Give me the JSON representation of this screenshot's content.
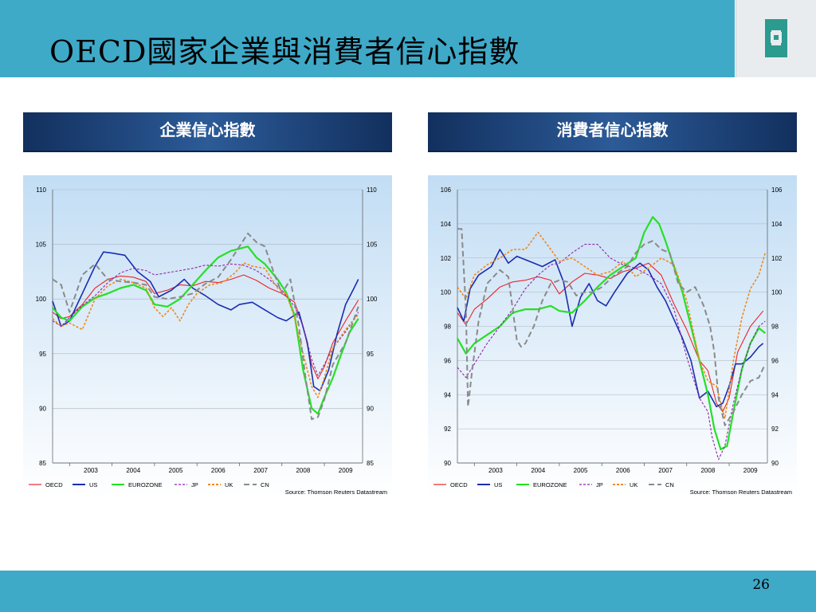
{
  "slide": {
    "title": "OECD國家企業與消費者信心指數",
    "page_number": "26"
  },
  "colors": {
    "band": "#3fa9c8",
    "chart_bg_top": "#c2ddf4",
    "chart_bg_bottom": "#ffffff",
    "OECD": "#e8262b",
    "US": "#1a2db0",
    "EUROZONE": "#25e025",
    "JP": "#9124a8",
    "UK": "#f08a1d",
    "CN": "#8a8a8a"
  },
  "logo": {
    "icon": "fubon-logo-icon"
  },
  "chart_data": [
    {
      "type": "line",
      "header": "企業信心指數",
      "ylim": [
        85,
        110
      ],
      "yticks": [
        85,
        90,
        95,
        100,
        105,
        110
      ],
      "xlim": [
        2002.6,
        2009.9
      ],
      "xticks": [
        "2003",
        "2004",
        "2005",
        "2006",
        "2007",
        "2008",
        "2009"
      ],
      "source": "Source: Thomson Reuters Datastream",
      "grid": true,
      "legend": "bottom",
      "series": [
        {
          "name": "OECD",
          "x": [
            2002.6,
            2002.8,
            2003.0,
            2003.3,
            2003.6,
            2003.9,
            2004.2,
            2004.5,
            2004.8,
            2005.0,
            2005.3,
            2005.6,
            2005.9,
            2006.2,
            2006.5,
            2006.8,
            2007.1,
            2007.4,
            2007.7,
            2008.0,
            2008.3,
            2008.5,
            2008.7,
            2008.85,
            2009.0,
            2009.2,
            2009.5,
            2009.8
          ],
          "y": [
            98.8,
            98.2,
            98.4,
            99.5,
            101.0,
            101.8,
            102.1,
            102.0,
            101.6,
            100.5,
            100.8,
            101.3,
            101.2,
            101.6,
            101.5,
            101.8,
            102.2,
            101.7,
            101.0,
            100.5,
            99.7,
            97.5,
            94.0,
            92.7,
            93.8,
            96.0,
            98.0,
            99.9
          ]
        },
        {
          "name": "US",
          "x": [
            2002.6,
            2002.8,
            2003.0,
            2003.3,
            2003.6,
            2003.8,
            2004.0,
            2004.3,
            2004.6,
            2004.9,
            2005.1,
            2005.4,
            2005.7,
            2005.9,
            2006.2,
            2006.5,
            2006.8,
            2007.0,
            2007.3,
            2007.6,
            2007.9,
            2008.1,
            2008.4,
            2008.6,
            2008.75,
            2008.9,
            2009.1,
            2009.3,
            2009.5,
            2009.7,
            2009.8
          ],
          "y": [
            99.8,
            97.5,
            98.0,
            100.5,
            103.0,
            104.3,
            104.2,
            104.0,
            102.5,
            101.6,
            100.2,
            100.8,
            101.8,
            101.0,
            100.3,
            99.5,
            99.0,
            99.5,
            99.7,
            99.0,
            98.3,
            98.0,
            98.8,
            96.0,
            92.0,
            91.6,
            93.5,
            96.8,
            99.5,
            101.0,
            101.8
          ]
        },
        {
          "name": "EUROZONE",
          "x": [
            2002.6,
            2002.8,
            2003.0,
            2003.3,
            2003.6,
            2003.9,
            2004.2,
            2004.5,
            2004.8,
            2005.0,
            2005.3,
            2005.6,
            2005.9,
            2006.2,
            2006.5,
            2006.8,
            2007.0,
            2007.2,
            2007.4,
            2007.6,
            2007.9,
            2008.1,
            2008.3,
            2008.5,
            2008.7,
            2008.85,
            2009.0,
            2009.2,
            2009.4,
            2009.6,
            2009.8
          ],
          "y": [
            99.2,
            98.3,
            98.0,
            99.3,
            100.1,
            100.5,
            101.0,
            101.3,
            100.8,
            99.5,
            99.3,
            100.0,
            101.3,
            102.6,
            103.8,
            104.4,
            104.6,
            104.8,
            103.8,
            103.2,
            101.8,
            100.6,
            98.5,
            93.5,
            90.0,
            89.5,
            91.0,
            92.8,
            95.0,
            97.0,
            98.2
          ]
        },
        {
          "name": "JP",
          "x": [
            2002.6,
            2002.8,
            2003.0,
            2003.3,
            2003.6,
            2003.9,
            2004.2,
            2004.5,
            2004.8,
            2005.0,
            2005.3,
            2005.6,
            2005.9,
            2006.2,
            2006.5,
            2006.8,
            2007.1,
            2007.4,
            2007.7,
            2008.0,
            2008.3,
            2008.5,
            2008.7,
            2008.85,
            2009.0,
            2009.2,
            2009.5,
            2009.8
          ],
          "y": [
            98.0,
            97.5,
            98.3,
            99.4,
            100.3,
            101.5,
            102.4,
            102.8,
            102.6,
            102.2,
            102.4,
            102.6,
            102.8,
            103.1,
            103.0,
            103.2,
            103.1,
            102.6,
            101.8,
            100.8,
            99.3,
            97.5,
            94.5,
            93.0,
            94.0,
            95.5,
            97.0,
            98.8
          ]
        },
        {
          "name": "UK",
          "x": [
            2002.6,
            2002.8,
            2003.0,
            2003.3,
            2003.6,
            2003.9,
            2004.2,
            2004.5,
            2004.8,
            2005.0,
            2005.2,
            2005.4,
            2005.6,
            2005.8,
            2006.0,
            2006.3,
            2006.6,
            2006.9,
            2007.1,
            2007.3,
            2007.6,
            2007.9,
            2008.1,
            2008.3,
            2008.5,
            2008.7,
            2008.85,
            2009.0,
            2009.2,
            2009.5,
            2009.8
          ],
          "y": [
            98.2,
            97.5,
            97.8,
            97.2,
            100.0,
            101.2,
            101.8,
            101.5,
            101.0,
            99.2,
            98.4,
            99.2,
            98.0,
            99.5,
            100.5,
            101.3,
            101.5,
            102.4,
            103.3,
            103.0,
            102.8,
            101.0,
            100.5,
            98.3,
            95.0,
            92.0,
            91.0,
            92.8,
            95.5,
            97.2,
            98.6
          ]
        },
        {
          "name": "CN",
          "x": [
            2002.6,
            2002.8,
            2003.0,
            2003.3,
            2003.6,
            2003.9,
            2004.2,
            2004.5,
            2004.8,
            2005.0,
            2005.3,
            2005.6,
            2005.9,
            2006.2,
            2006.5,
            2006.8,
            2007.0,
            2007.2,
            2007.4,
            2007.6,
            2007.8,
            2008.0,
            2008.2,
            2008.4,
            2008.55,
            2008.7,
            2008.85,
            2009.0,
            2009.2,
            2009.5,
            2009.8
          ],
          "y": [
            101.8,
            101.3,
            98.8,
            102.2,
            103.2,
            101.8,
            101.6,
            101.5,
            101.3,
            100.2,
            100.0,
            100.2,
            100.5,
            101.4,
            102.0,
            103.6,
            104.8,
            106.0,
            105.2,
            104.8,
            102.5,
            100.5,
            101.8,
            97.5,
            93.0,
            89.0,
            89.2,
            90.8,
            94.0,
            96.0,
            99.3
          ]
        }
      ]
    },
    {
      "type": "line",
      "header": "消費者信心指數",
      "ylim": [
        90,
        106
      ],
      "yticks": [
        90,
        92,
        94,
        96,
        98,
        100,
        102,
        104,
        106
      ],
      "xlim": [
        2002.6,
        2009.9
      ],
      "xticks": [
        "2003",
        "2004",
        "2005",
        "2006",
        "2007",
        "2008",
        "2009"
      ],
      "source": "Source: Thomson Reuters Datastream",
      "grid": true,
      "legend": "bottom",
      "series": [
        {
          "name": "OECD",
          "x": [
            2002.6,
            2002.8,
            2003.0,
            2003.3,
            2003.6,
            2003.9,
            2004.2,
            2004.5,
            2004.8,
            2005.0,
            2005.3,
            2005.6,
            2005.9,
            2006.2,
            2006.5,
            2006.8,
            2007.1,
            2007.4,
            2007.7,
            2008.0,
            2008.3,
            2008.5,
            2008.7,
            2008.85,
            2009.0,
            2009.2,
            2009.5,
            2009.8
          ],
          "y": [
            98.8,
            98.1,
            99.0,
            99.6,
            100.3,
            100.6,
            100.7,
            100.9,
            100.7,
            99.9,
            100.6,
            101.1,
            101.0,
            100.8,
            101.2,
            101.4,
            101.7,
            101.0,
            99.3,
            97.8,
            96.0,
            95.4,
            93.5,
            93.0,
            93.8,
            96.5,
            98.0,
            98.9
          ]
        },
        {
          "name": "US",
          "x": [
            2002.6,
            2002.75,
            2002.9,
            2003.1,
            2003.4,
            2003.6,
            2003.8,
            2004.0,
            2004.3,
            2004.6,
            2004.9,
            2005.1,
            2005.3,
            2005.5,
            2005.7,
            2005.9,
            2006.1,
            2006.3,
            2006.6,
            2006.9,
            2007.1,
            2007.3,
            2007.5,
            2007.7,
            2007.9,
            2008.1,
            2008.3,
            2008.5,
            2008.7,
            2008.85,
            2009.0,
            2009.15,
            2009.3,
            2009.5,
            2009.7,
            2009.8
          ],
          "y": [
            99.1,
            98.3,
            100.2,
            101.0,
            101.5,
            102.5,
            101.7,
            102.1,
            101.8,
            101.5,
            101.9,
            100.6,
            98.0,
            99.7,
            100.5,
            99.5,
            99.2,
            100.0,
            101.1,
            101.7,
            101.3,
            100.3,
            99.5,
            98.4,
            97.3,
            96.0,
            93.8,
            94.2,
            93.3,
            93.5,
            94.5,
            95.8,
            95.8,
            96.2,
            96.8,
            97.0
          ]
        },
        {
          "name": "EUROZONE",
          "x": [
            2002.6,
            2002.8,
            2003.0,
            2003.3,
            2003.6,
            2003.9,
            2004.2,
            2004.5,
            2004.8,
            2005.0,
            2005.3,
            2005.6,
            2005.9,
            2006.2,
            2006.5,
            2006.8,
            2007.0,
            2007.2,
            2007.35,
            2007.5,
            2007.7,
            2007.9,
            2008.1,
            2008.3,
            2008.5,
            2008.65,
            2008.8,
            2008.95,
            2009.1,
            2009.3,
            2009.5,
            2009.7,
            2009.85
          ],
          "y": [
            97.3,
            96.4,
            97.0,
            97.5,
            98.0,
            98.8,
            99.0,
            99.0,
            99.2,
            98.9,
            98.8,
            99.5,
            100.3,
            101.0,
            101.5,
            102.0,
            103.5,
            104.4,
            104.0,
            103.0,
            101.5,
            100.0,
            98.0,
            96.0,
            94.0,
            92.0,
            90.8,
            91.0,
            93.0,
            95.5,
            97.0,
            97.9,
            97.6
          ]
        },
        {
          "name": "JP",
          "x": [
            2002.6,
            2002.8,
            2003.0,
            2003.3,
            2003.6,
            2003.9,
            2004.2,
            2004.5,
            2004.8,
            2005.0,
            2005.3,
            2005.6,
            2005.9,
            2006.2,
            2006.5,
            2006.8,
            2007.1,
            2007.4,
            2007.7,
            2008.0,
            2008.3,
            2008.5,
            2008.6,
            2008.75,
            2008.9,
            2009.1,
            2009.3,
            2009.5,
            2009.7,
            2009.85
          ],
          "y": [
            95.6,
            95.0,
            95.8,
            97.0,
            98.0,
            99.0,
            100.2,
            101.0,
            101.6,
            101.7,
            102.3,
            102.8,
            102.8,
            102.0,
            101.6,
            101.4,
            101.0,
            100.5,
            99.0,
            96.2,
            93.8,
            93.0,
            91.5,
            90.2,
            91.0,
            93.5,
            95.5,
            97.0,
            98.0,
            98.3
          ]
        },
        {
          "name": "UK",
          "x": [
            2002.6,
            2002.8,
            2003.0,
            2003.3,
            2003.6,
            2003.9,
            2004.2,
            2004.5,
            2004.8,
            2005.0,
            2005.3,
            2005.6,
            2005.9,
            2006.2,
            2006.5,
            2006.8,
            2007.1,
            2007.4,
            2007.7,
            2008.0,
            2008.3,
            2008.5,
            2008.7,
            2008.9,
            2009.1,
            2009.3,
            2009.5,
            2009.7,
            2009.85
          ],
          "y": [
            100.3,
            99.6,
            101.0,
            101.6,
            102.0,
            102.5,
            102.5,
            103.5,
            102.5,
            101.8,
            102.0,
            101.5,
            101.0,
            101.2,
            101.8,
            100.9,
            101.4,
            102.0,
            101.6,
            99.5,
            96.0,
            94.8,
            94.5,
            92.6,
            96.0,
            98.5,
            100.2,
            101.0,
            102.3
          ]
        },
        {
          "name": "CN",
          "x": [
            2002.6,
            2002.7,
            2002.8,
            2002.85,
            2002.95,
            2003.1,
            2003.3,
            2003.6,
            2003.8,
            2004.0,
            2004.1,
            2004.2,
            2004.4,
            2004.6,
            2004.8,
            2005.0,
            2005.2,
            2005.4,
            2005.6,
            2005.8,
            2006.0,
            2006.3,
            2006.6,
            2006.8,
            2007.0,
            2007.2,
            2007.4,
            2007.6,
            2007.8,
            2008.0,
            2008.2,
            2008.4,
            2008.55,
            2008.65,
            2008.75,
            2008.9,
            2009.1,
            2009.3,
            2009.5,
            2009.7,
            2009.85
          ],
          "y": [
            103.7,
            103.7,
            99.0,
            93.3,
            95.5,
            98.3,
            100.5,
            101.3,
            100.9,
            97.2,
            96.8,
            97.0,
            98.0,
            99.5,
            100.5,
            100.7,
            100.6,
            99.8,
            100.0,
            100.0,
            100.3,
            101.0,
            101.5,
            102.3,
            102.8,
            103.0,
            102.5,
            102.3,
            100.5,
            100.0,
            100.3,
            99.2,
            98.0,
            96.5,
            93.8,
            92.2,
            93.0,
            94.0,
            94.8,
            95.0,
            95.8
          ]
        }
      ]
    }
  ]
}
